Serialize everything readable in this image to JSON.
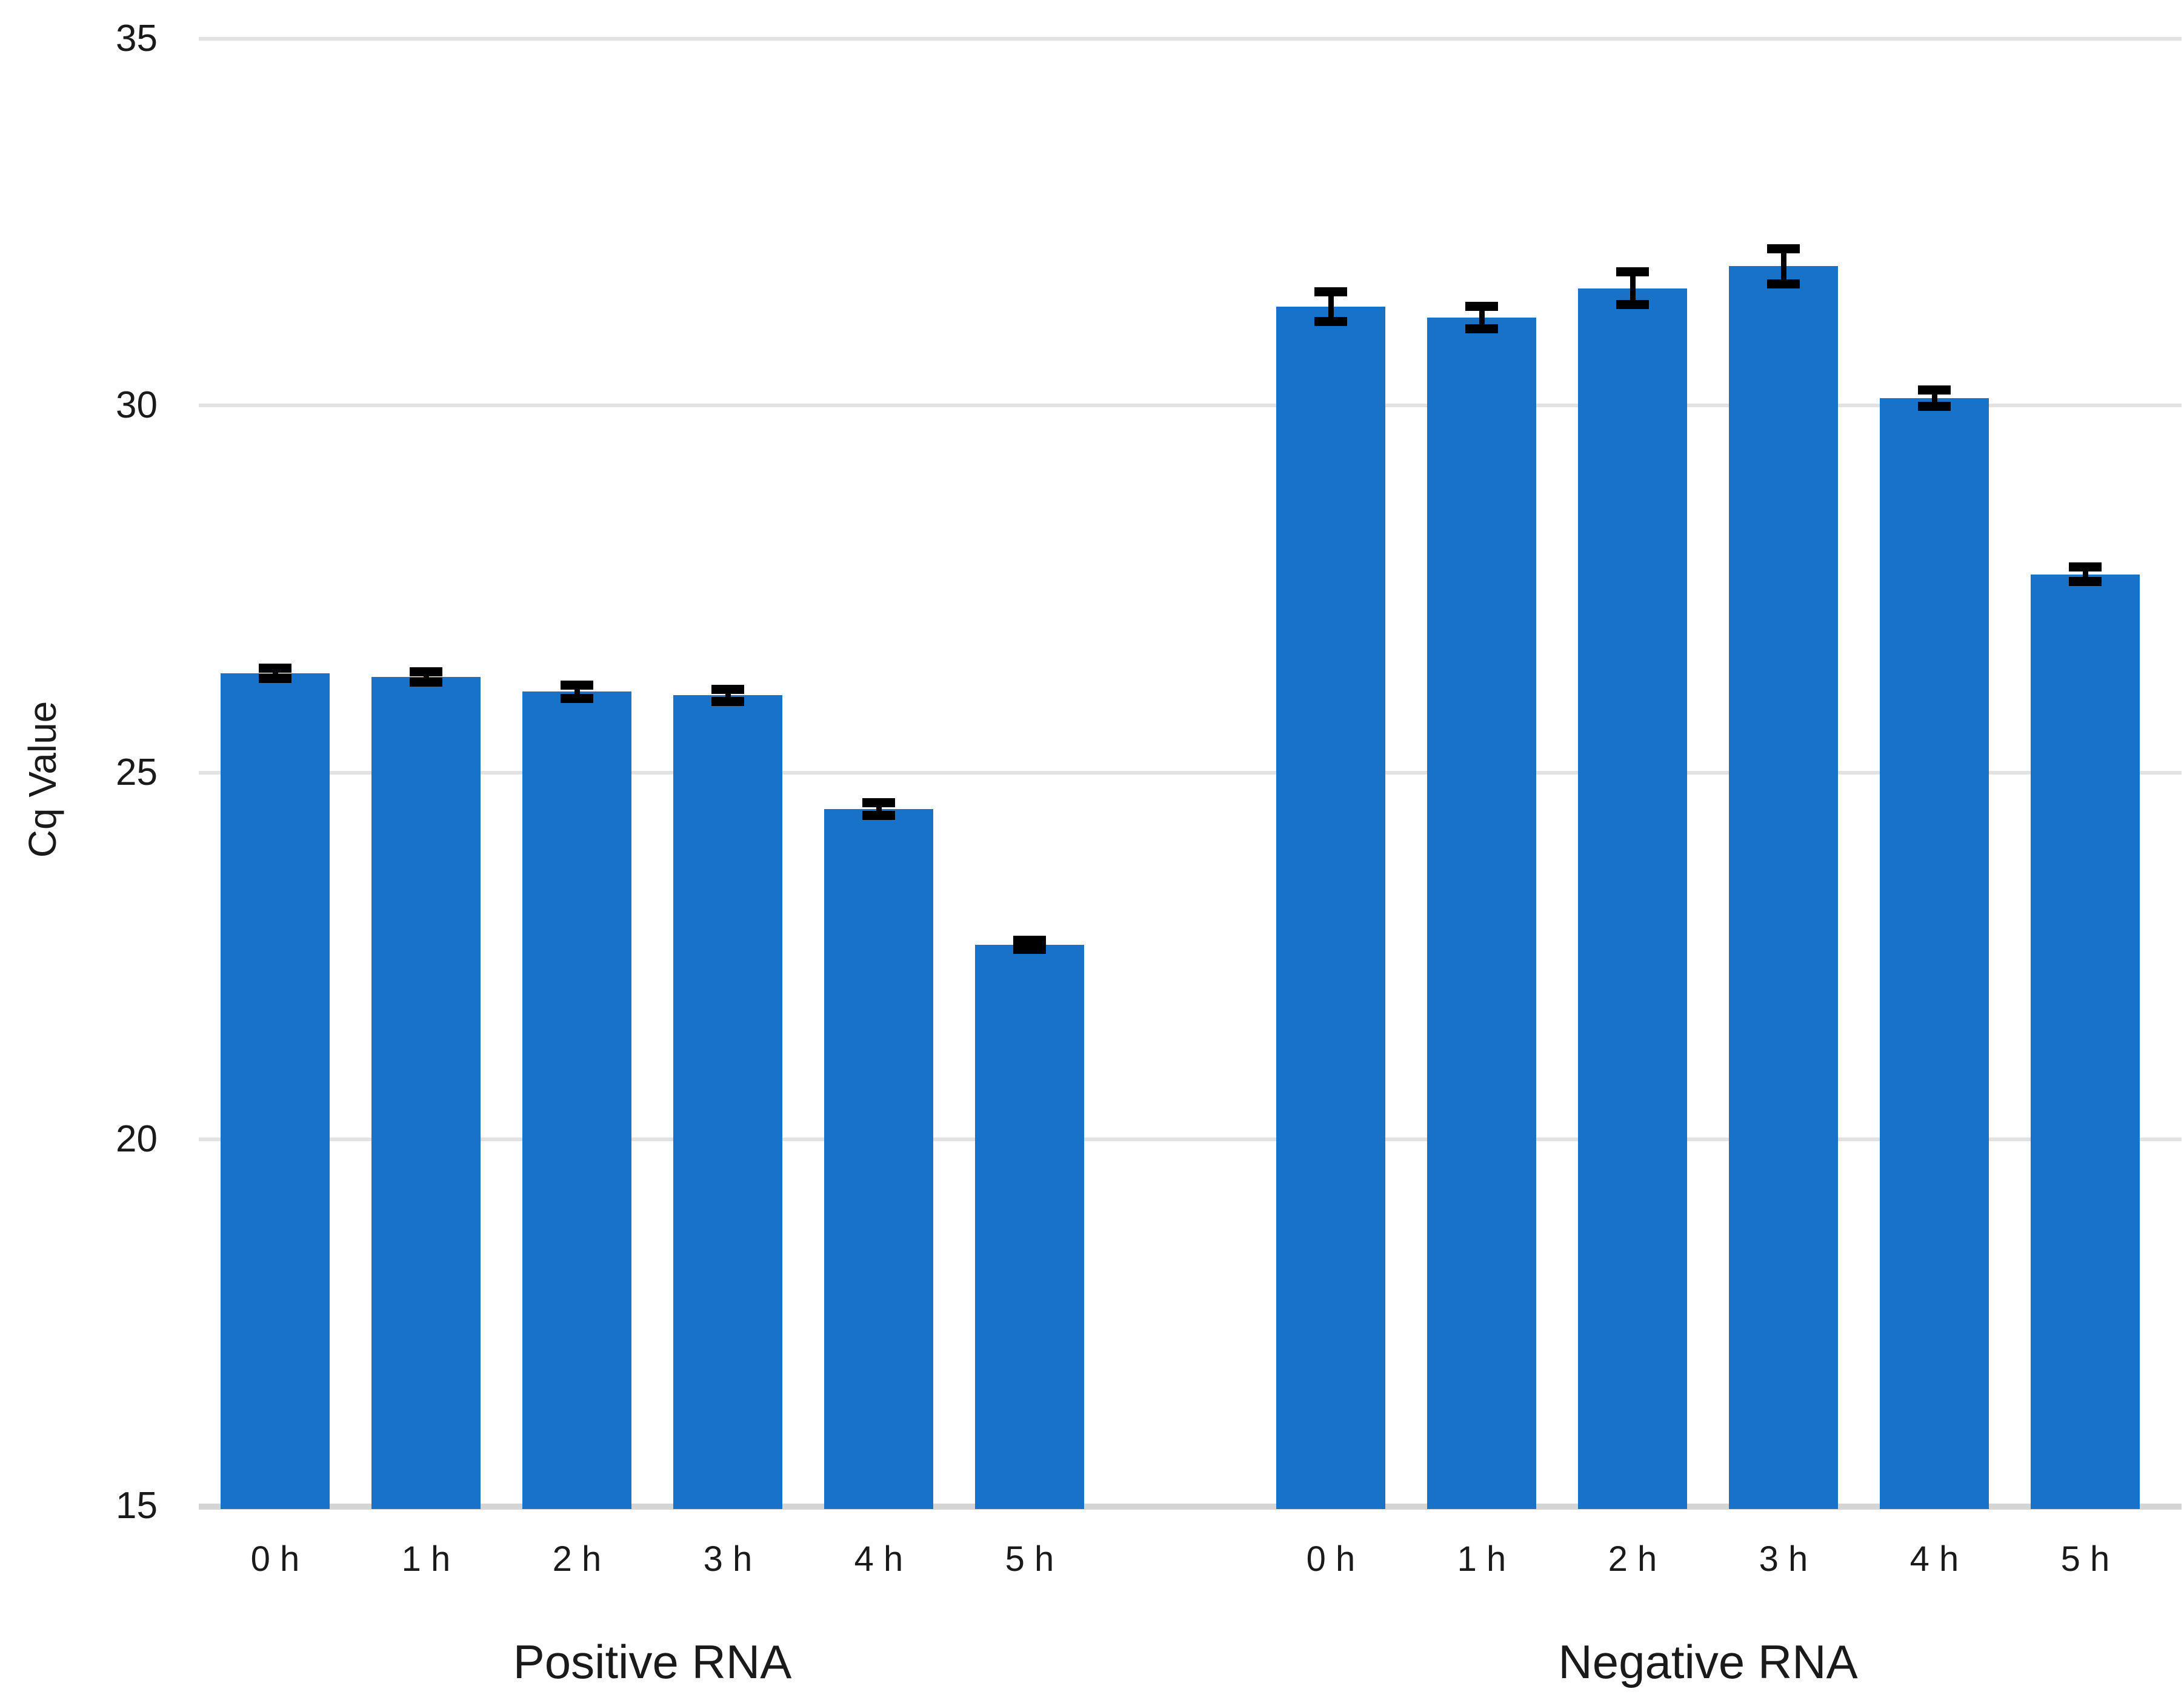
{
  "chart_data": {
    "type": "bar",
    "title": "",
    "ylabel": "Cq Value",
    "xlabel": "",
    "ylim": [
      15,
      35
    ],
    "yticks": [
      15,
      20,
      25,
      30,
      35
    ],
    "grid": "horizontal-light-gray",
    "legend": "none",
    "bar_color": "#1772C8",
    "error_bar_color": "#000000",
    "gridline_color": "#E2E2E2",
    "axis_line_color": "#D5D5D5",
    "categories": [
      "0 h",
      "1 h",
      "2 h",
      "3 h",
      "4 h",
      "5 h"
    ],
    "groups": [
      {
        "label": "Positive RNA",
        "categories": [
          "0 h",
          "1 h",
          "2 h",
          "3 h",
          "4 h",
          "5 h"
        ],
        "values": [
          26.35,
          26.3,
          26.1,
          26.05,
          24.5,
          22.65
        ],
        "errors": [
          0.07,
          0.07,
          0.09,
          0.08,
          0.09,
          0.06
        ]
      },
      {
        "label": "Negative RNA",
        "categories": [
          "0 h",
          "1 h",
          "2 h",
          "3 h",
          "4 h",
          "5 h"
        ],
        "values": [
          31.35,
          31.2,
          31.6,
          31.9,
          30.1,
          27.7
        ],
        "errors": [
          0.2,
          0.15,
          0.22,
          0.24,
          0.11,
          0.1
        ]
      }
    ]
  }
}
